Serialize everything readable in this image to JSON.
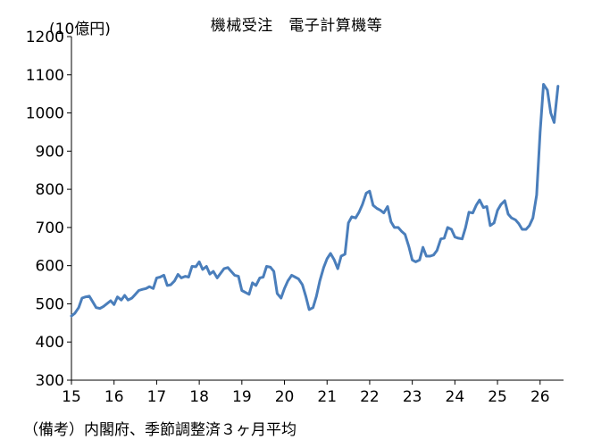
{
  "chart_data": {
    "type": "line",
    "title": "機械受注　電子計算機等",
    "unit_label": "(10億円)",
    "note": "（備考）内閣府、季節調整済３ヶ月平均",
    "ylim": [
      300,
      1200
    ],
    "yticks": [
      "300",
      "400",
      "500",
      "600",
      "700",
      "800",
      "900",
      "1000",
      "1100",
      "1200"
    ],
    "xlim": [
      2015,
      2026.55
    ],
    "xticks": [
      "15",
      "16",
      "17",
      "18",
      "19",
      "20",
      "21",
      "22",
      "23",
      "24",
      "25",
      "26"
    ],
    "grid": false,
    "line_color": "#4a7ebb",
    "series": [
      {
        "x": [
          2015.0,
          2015.08,
          2015.17,
          2015.25,
          2015.33,
          2015.42,
          2015.5,
          2015.58,
          2015.67,
          2015.75,
          2015.83,
          2015.92,
          2016.0,
          2016.08,
          2016.17,
          2016.25,
          2016.33,
          2016.42,
          2016.5,
          2016.58,
          2016.67,
          2016.75,
          2016.83,
          2016.92,
          2017.0,
          2017.08,
          2017.17,
          2017.25,
          2017.33,
          2017.42,
          2017.5,
          2017.58,
          2017.67,
          2017.75,
          2017.83,
          2017.92,
          2018.0,
          2018.08,
          2018.17,
          2018.25,
          2018.33,
          2018.42,
          2018.5,
          2018.58,
          2018.67,
          2018.75,
          2018.83,
          2018.92,
          2019.0,
          2019.08,
          2019.17,
          2019.25,
          2019.33,
          2019.42,
          2019.5,
          2019.58,
          2019.67,
          2019.75,
          2019.83,
          2019.92,
          2020.0,
          2020.08,
          2020.17,
          2020.25,
          2020.33,
          2020.42,
          2020.5,
          2020.58,
          2020.67,
          2020.75,
          2020.83,
          2020.92,
          2021.0,
          2021.08,
          2021.17,
          2021.25,
          2021.33,
          2021.42,
          2021.5,
          2021.58,
          2021.67,
          2021.75,
          2021.83,
          2021.92,
          2022.0,
          2022.08,
          2022.17,
          2022.25,
          2022.33,
          2022.42,
          2022.5,
          2022.58,
          2022.67,
          2022.75,
          2022.83,
          2022.92,
          2023.0,
          2023.08,
          2023.17,
          2023.25,
          2023.33,
          2023.42,
          2023.5,
          2023.58,
          2023.67,
          2023.75,
          2023.83,
          2023.92,
          2024.0,
          2024.08,
          2024.17,
          2024.25,
          2024.33,
          2024.42,
          2024.5,
          2024.58,
          2024.67,
          2024.75,
          2024.83,
          2024.92,
          2025.0,
          2025.08,
          2025.17,
          2025.25,
          2025.33,
          2025.42,
          2025.5,
          2025.58,
          2025.67,
          2025.75,
          2025.83,
          2025.92,
          2026.0,
          2026.08,
          2026.17,
          2026.25,
          2026.33,
          2026.42
        ],
        "y": [
          468,
          475,
          490,
          515,
          518,
          520,
          505,
          490,
          488,
          493,
          500,
          508,
          498,
          518,
          510,
          522,
          510,
          515,
          525,
          535,
          538,
          540,
          545,
          540,
          568,
          570,
          575,
          548,
          550,
          560,
          577,
          568,
          572,
          570,
          598,
          597,
          610,
          590,
          598,
          578,
          585,
          568,
          580,
          592,
          595,
          585,
          575,
          572,
          535,
          530,
          525,
          555,
          548,
          568,
          570,
          598,
          596,
          585,
          527,
          515,
          540,
          560,
          575,
          570,
          565,
          550,
          520,
          485,
          490,
          520,
          560,
          595,
          618,
          632,
          615,
          592,
          625,
          630,
          712,
          728,
          725,
          740,
          760,
          790,
          795,
          758,
          750,
          745,
          738,
          755,
          715,
          700,
          700,
          690,
          682,
          650,
          615,
          610,
          615,
          648,
          625,
          625,
          628,
          640,
          670,
          672,
          700,
          695,
          675,
          672,
          670,
          700,
          740,
          738,
          758,
          772,
          752,
          755,
          705,
          712,
          745,
          760,
          770,
          735,
          725,
          720,
          710,
          695,
          695,
          705,
          725,
          785,
          950,
          1075,
          1060,
          1000,
          975,
          1070
        ]
      }
    ]
  }
}
